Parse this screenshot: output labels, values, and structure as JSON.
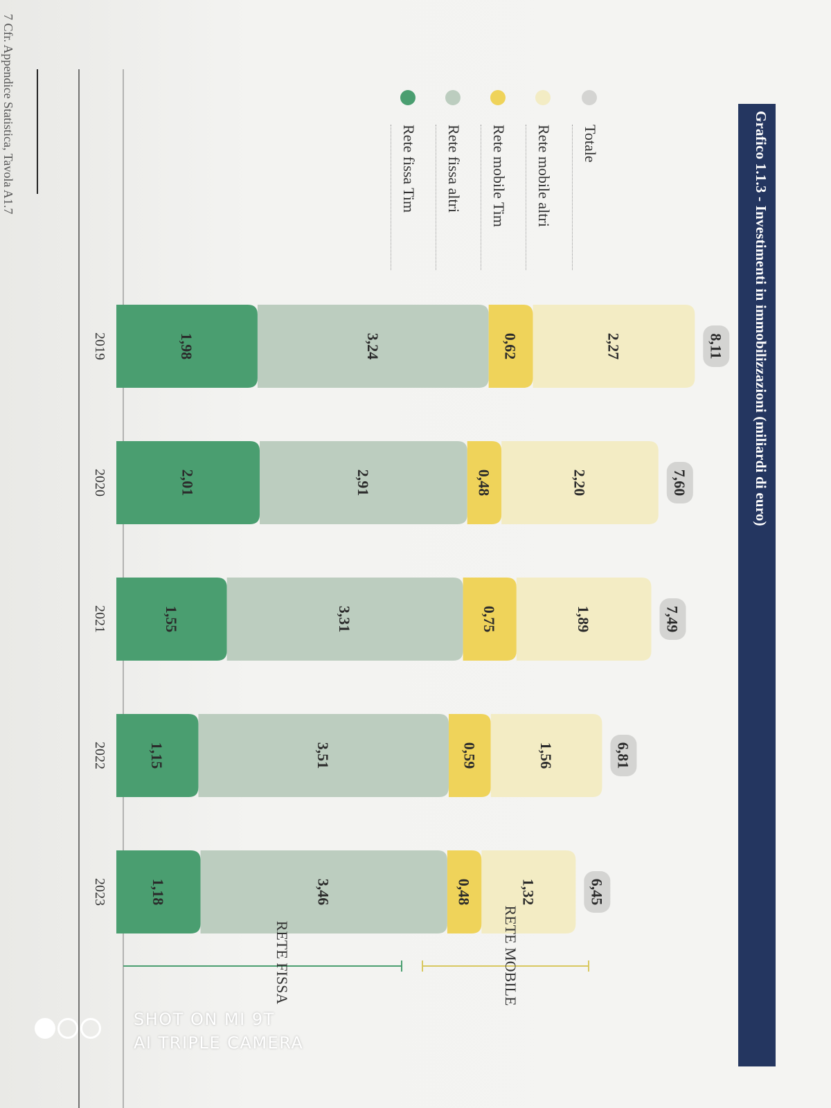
{
  "chart_data": {
    "type": "bar",
    "stacked": true,
    "title": "Grafico 1.1.3 - Investimenti in immobilizzazioni (miliardi di euro)",
    "categories": [
      "2019",
      "2020",
      "2021",
      "2022",
      "2023"
    ],
    "series": [
      {
        "name": "Rete fissa Tim",
        "color": "#4a9e70",
        "values": [
          1.98,
          2.01,
          1.55,
          1.15,
          1.18
        ],
        "labels": [
          "1,98",
          "2,01",
          "1,55",
          "1,15",
          "1,18"
        ]
      },
      {
        "name": "Rete fissa altri",
        "color": "#bccdbf",
        "values": [
          3.24,
          2.91,
          3.31,
          3.51,
          3.46
        ],
        "labels": [
          "3,24",
          "2,91",
          "3,31",
          "3,51",
          "3,46"
        ]
      },
      {
        "name": "Rete mobile Tim",
        "color": "#efd35a",
        "values": [
          0.62,
          0.48,
          0.75,
          0.59,
          0.48
        ],
        "labels": [
          "0,62",
          "0,48",
          "0,75",
          "0,59",
          "0,48"
        ]
      },
      {
        "name": "Rete mobile altri",
        "color": "#f3ecc4",
        "values": [
          2.27,
          2.2,
          1.89,
          1.56,
          1.32
        ],
        "labels": [
          "2,27",
          "2,20",
          "1,89",
          "1,56",
          "1,32"
        ]
      }
    ],
    "totals": {
      "name": "Totale",
      "color": "#d4d4d2",
      "values": [
        8.11,
        7.6,
        7.49,
        6.81,
        6.45
      ],
      "labels": [
        "8,11",
        "7,60",
        "7,49",
        "6,81",
        "6,45"
      ]
    },
    "groups": [
      "RETE FISSA",
      "RETE MOBILE"
    ],
    "legend_position": "left",
    "grid": false
  },
  "footnote": "7   Cfr. Appendice Statistica, Tavola A1.7",
  "watermark": {
    "line1": "SHOT ON MI 9T",
    "line2": "AI TRIPLE CAMERA"
  }
}
